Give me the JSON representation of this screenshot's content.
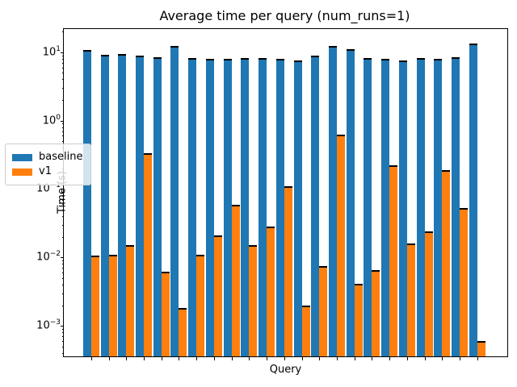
{
  "figure": {
    "title": "Average time per query (num_runs=1)"
  },
  "chart_data": {
    "type": "bar",
    "title": "Average time per query (num_runs=1)",
    "xlabel": "Query",
    "ylabel": "Time (s)",
    "yscale": "log",
    "ylim": [
      0.00035,
      22
    ],
    "y_ticks": [
      {
        "exp": "1",
        "value": 10
      },
      {
        "exp": "0",
        "value": 1
      },
      {
        "exp": "−1",
        "value": 0.1
      },
      {
        "exp": "−2",
        "value": 0.01
      },
      {
        "exp": "−3",
        "value": 0.001
      }
    ],
    "n_groups": 23,
    "x_tick_labels": [],
    "grid": false,
    "error_caps": true,
    "legend": {
      "position": "center-left",
      "entries": [
        "baseline",
        "v1"
      ]
    },
    "series": [
      {
        "name": "baseline",
        "color": "#1f77b4",
        "values": [
          10.8,
          9.1,
          9.5,
          8.9,
          8.4,
          12.2,
          8.3,
          7.9,
          7.9,
          8.3,
          8.2,
          7.9,
          7.5,
          8.8,
          12.4,
          11.1,
          8.2,
          7.9,
          7.5,
          8.2,
          8.0,
          8.4,
          13.2
        ]
      },
      {
        "name": "v1",
        "color": "#ff7f0e",
        "values": [
          0.0105,
          0.011,
          0.015,
          0.33,
          0.0062,
          0.0018,
          0.011,
          0.021,
          0.058,
          0.015,
          0.028,
          0.11,
          0.002,
          0.0074,
          0.63,
          0.0041,
          0.0066,
          0.22,
          0.016,
          0.024,
          0.19,
          0.053,
          0.0006
        ]
      }
    ]
  }
}
